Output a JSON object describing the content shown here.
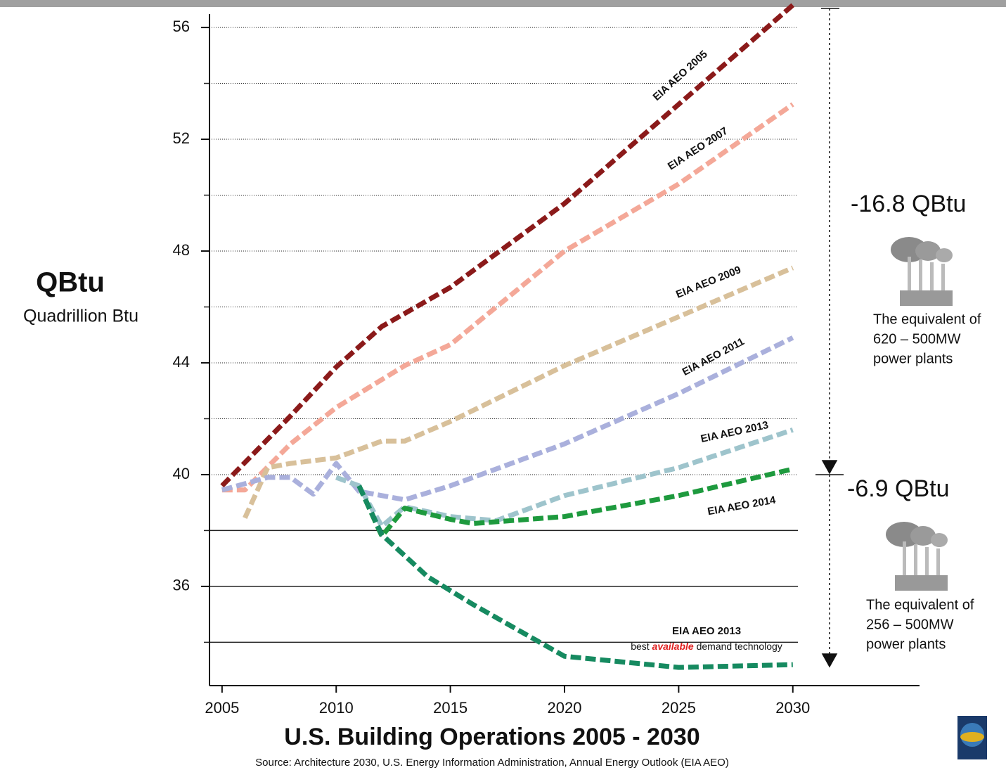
{
  "chart_data": {
    "type": "line",
    "title": "U.S. Building Operations 2005 - 2030",
    "source": "Source: Architecture 2030, U.S. Energy Information Administration, Annual Energy Outlook (EIA AEO)",
    "y_label": "QBtu",
    "y_sublabel": "Quadrillion Btu",
    "xlim": [
      2004.45,
      2035.55
    ],
    "xticks": [
      2005,
      2010,
      2015,
      2020,
      2025,
      2030
    ],
    "ylim": [
      32.45,
      56.48
    ],
    "yticks": [
      36,
      40,
      44,
      48,
      52,
      56
    ],
    "grid_lines": {
      "dotted": [
        56,
        54,
        52,
        50,
        48,
        46,
        44,
        42,
        40
      ],
      "solid": [
        38,
        36,
        34
      ]
    },
    "series": [
      {
        "name": "EIA AEO 2005",
        "color": "#8b1a1a",
        "x": [
          2005,
          2008,
          2010,
          2012,
          2015,
          2020,
          2025,
          2030
        ],
        "values": [
          39.6,
          42.1,
          43.85,
          45.3,
          46.7,
          49.7,
          53.25,
          56.8
        ]
      },
      {
        "name": "EIA AEO 2007",
        "color": "#f4a898",
        "x": [
          2005,
          2006,
          2008,
          2010,
          2013,
          2015,
          2020,
          2025,
          2030
        ],
        "values": [
          39.45,
          39.45,
          41.1,
          42.4,
          43.9,
          44.65,
          48.0,
          50.4,
          53.25
        ]
      },
      {
        "name": "EIA AEO 2009",
        "color": "#d8c09a",
        "x": [
          2006,
          2007,
          2008,
          2010,
          2012,
          2013,
          2015,
          2020,
          2025,
          2030
        ],
        "values": [
          38.45,
          40.25,
          40.4,
          40.6,
          41.2,
          41.2,
          41.9,
          43.9,
          45.65,
          47.4
        ]
      },
      {
        "name": "EIA AEO 2011",
        "color": "#aab0dc",
        "x": [
          2005,
          2007,
          2008,
          2009,
          2010,
          2011,
          2013,
          2015,
          2020,
          2025,
          2030
        ],
        "values": [
          39.45,
          39.9,
          39.9,
          39.3,
          40.4,
          39.4,
          39.1,
          39.6,
          41.1,
          42.9,
          44.9
        ]
      },
      {
        "name": "EIA AEO 2013",
        "color": "#9ec4cc",
        "x": [
          2010,
          2011,
          2012,
          2013,
          2015,
          2017,
          2020,
          2025,
          2030
        ],
        "values": [
          39.9,
          39.6,
          38.15,
          38.85,
          38.5,
          38.35,
          39.25,
          40.25,
          41.6
        ]
      },
      {
        "name": "EIA AEO 2014",
        "color": "#1e9a3e",
        "x": [
          2011,
          2012,
          2013,
          2015,
          2016,
          2020,
          2025,
          2030
        ],
        "values": [
          39.6,
          37.8,
          38.8,
          38.4,
          38.25,
          38.5,
          39.25,
          40.2
        ]
      },
      {
        "name": "EIA AEO 2013",
        "color": "#168a60",
        "x": [
          2011,
          2012,
          2014,
          2016,
          2020,
          2025,
          2030
        ],
        "values": [
          39.6,
          37.85,
          36.35,
          35.35,
          33.5,
          33.1,
          33.2
        ],
        "note": {
          "before": "best ",
          "highlight": "available",
          "after": " demand technology"
        }
      }
    ],
    "annotations": [
      {
        "text": "-16.8 QBtu",
        "description": [
          "The equivalent of",
          "620 – 500MW",
          "power plants"
        ]
      },
      {
        "text": "-6.9 QBtu",
        "description": [
          "The equivalent of",
          "256 – 500MW",
          "power plants"
        ]
      }
    ]
  }
}
